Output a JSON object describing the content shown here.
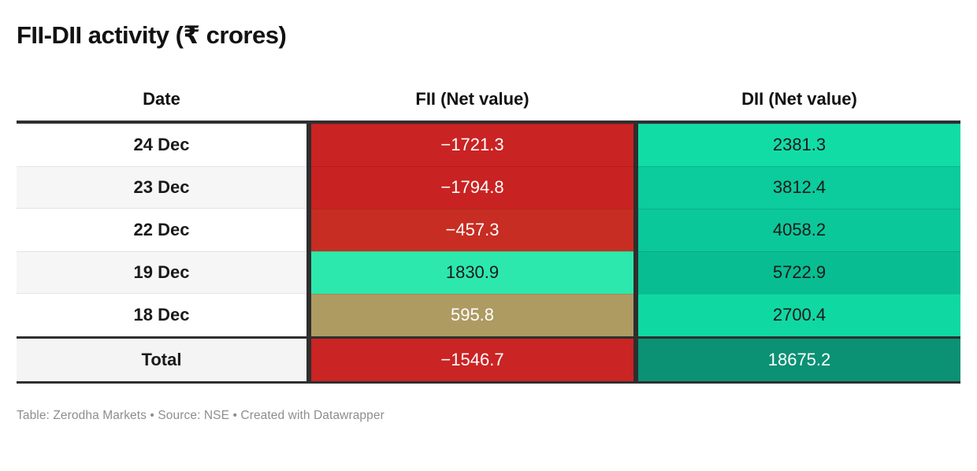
{
  "title": "FII-DII activity (₹ crores)",
  "table": {
    "columns": [
      "Date",
      "FII (Net value)",
      "DII (Net value)"
    ],
    "rows": [
      {
        "date": "24 Dec",
        "fii": {
          "text": "−1721.3",
          "bg": "#ca2323",
          "fg": "#ffffff"
        },
        "dii": {
          "text": "2381.3",
          "bg": "#12dca6",
          "fg": "#1a1a1a"
        }
      },
      {
        "date": "23 Dec",
        "fii": {
          "text": "−1794.8",
          "bg": "#c92222",
          "fg": "#ffffff"
        },
        "dii": {
          "text": "3812.4",
          "bg": "#0ccb9d",
          "fg": "#1a1a1a"
        }
      },
      {
        "date": "22 Dec",
        "fii": {
          "text": "−457.3",
          "bg": "#c72d22",
          "fg": "#ffffff"
        },
        "dii": {
          "text": "4058.2",
          "bg": "#0bc89a",
          "fg": "#1a1a1a"
        }
      },
      {
        "date": "19 Dec",
        "fii": {
          "text": "1830.9",
          "bg": "#2de8ac",
          "fg": "#1a1a1a"
        },
        "dii": {
          "text": "5722.9",
          "bg": "#09bd92",
          "fg": "#1a1a1a"
        }
      },
      {
        "date": "18 Dec",
        "fii": {
          "text": "595.8",
          "bg": "#ad9b62",
          "fg": "#ffffff"
        },
        "dii": {
          "text": "2700.4",
          "bg": "#10d8a3",
          "fg": "#1a1a1a"
        }
      }
    ],
    "total": {
      "label": "Total",
      "fii": {
        "text": "−1546.7",
        "bg": "#ca2424",
        "fg": "#ffffff"
      },
      "dii": {
        "text": "18675.2",
        "bg": "#0b9174",
        "fg": "#ffffff"
      }
    }
  },
  "footer": {
    "text": "Table: Zerodha Markets • Source: NSE • Created with Datawrapper"
  },
  "chart_data": {
    "type": "table",
    "title": "FII-DII activity (₹ crores)",
    "columns": [
      "Date",
      "FII (Net value)",
      "DII (Net value)"
    ],
    "rows": [
      [
        "24 Dec",
        -1721.3,
        2381.3
      ],
      [
        "23 Dec",
        -1794.8,
        3812.4
      ],
      [
        "22 Dec",
        -457.3,
        4058.2
      ],
      [
        "19 Dec",
        1830.9,
        5722.9
      ],
      [
        "18 Dec",
        595.8,
        2700.4
      ],
      [
        "Total",
        -1546.7,
        18675.2
      ]
    ],
    "layout_hints": {
      "cell_coloring": "diverging heatmap: negative values red, small positive tan, positive green darkening with magnitude",
      "negative_color": "#ca2323",
      "positive_color": "#12dca6",
      "total_positive_color": "#0b9174"
    }
  }
}
